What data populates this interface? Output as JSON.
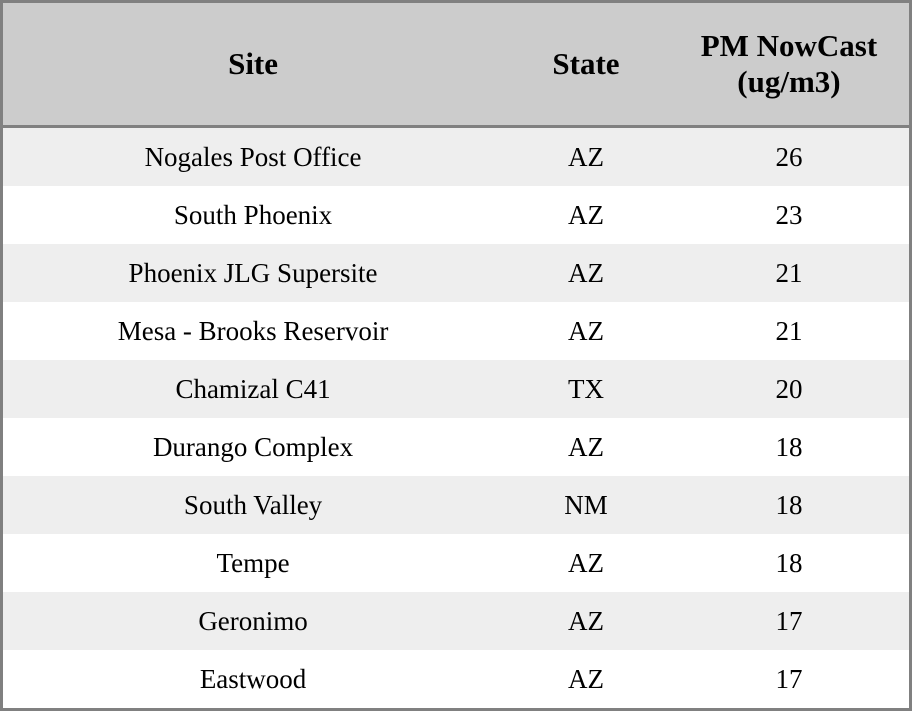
{
  "colors": {
    "header_bg": "#cccccc",
    "row_odd_bg": "#eeeeee",
    "row_even_bg": "#ffffff",
    "border": "#808080",
    "text": "#000000"
  },
  "table": {
    "headers": {
      "site": "Site",
      "state": "State",
      "pm": "PM NowCast (ug/m3)"
    },
    "rows": [
      {
        "site": "Nogales Post Office",
        "state": "AZ",
        "pm": "26"
      },
      {
        "site": "South Phoenix",
        "state": "AZ",
        "pm": "23"
      },
      {
        "site": "Phoenix JLG Supersite",
        "state": "AZ",
        "pm": "21"
      },
      {
        "site": "Mesa - Brooks Reservoir",
        "state": "AZ",
        "pm": "21"
      },
      {
        "site": "Chamizal C41",
        "state": "TX",
        "pm": "20"
      },
      {
        "site": "Durango Complex",
        "state": "AZ",
        "pm": "18"
      },
      {
        "site": "South Valley",
        "state": "NM",
        "pm": "18"
      },
      {
        "site": "Tempe",
        "state": "AZ",
        "pm": "18"
      },
      {
        "site": "Geronimo",
        "state": "AZ",
        "pm": "17"
      },
      {
        "site": "Eastwood",
        "state": "AZ",
        "pm": "17"
      }
    ]
  },
  "chart_data": {
    "type": "table",
    "columns": [
      "Site",
      "State",
      "PM NowCast (ug/m3)"
    ],
    "rows": [
      [
        "Nogales Post Office",
        "AZ",
        26
      ],
      [
        "South Phoenix",
        "AZ",
        23
      ],
      [
        "Phoenix JLG Supersite",
        "AZ",
        21
      ],
      [
        "Mesa - Brooks Reservoir",
        "AZ",
        21
      ],
      [
        "Chamizal C41",
        "TX",
        20
      ],
      [
        "Durango Complex",
        "AZ",
        18
      ],
      [
        "South Valley",
        "NM",
        18
      ],
      [
        "Tempe",
        "AZ",
        18
      ],
      [
        "Geronimo",
        "AZ",
        17
      ],
      [
        "Eastwood",
        "AZ",
        17
      ]
    ],
    "title": "",
    "layout_hints": {
      "zebra_striping": true,
      "header_bold": true,
      "all_cells_centered": true
    }
  }
}
